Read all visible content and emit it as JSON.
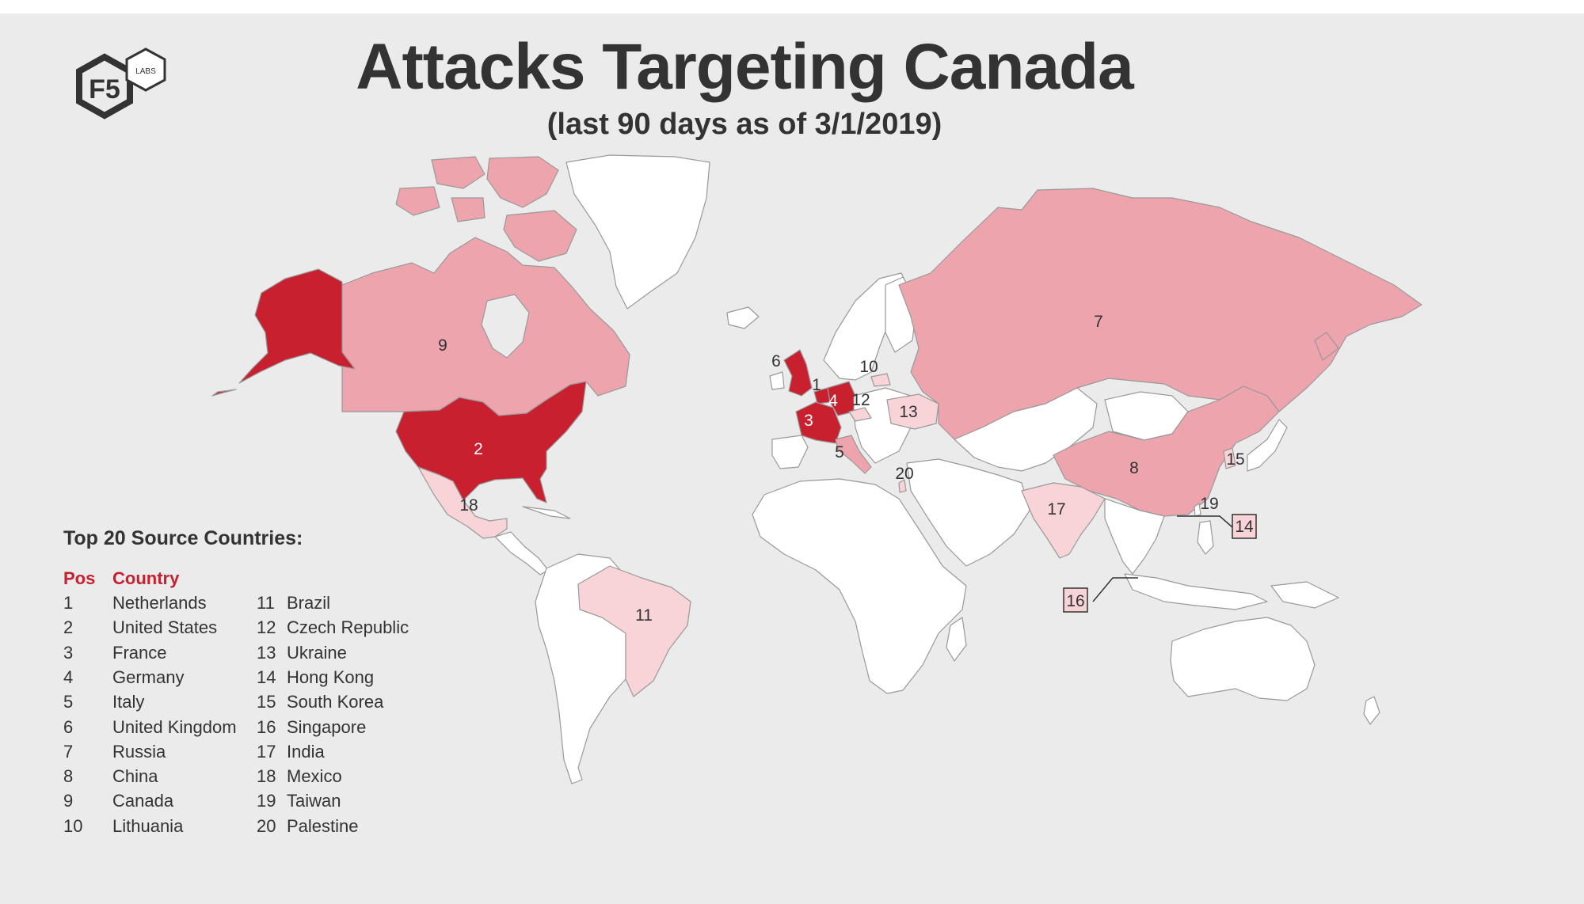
{
  "header": {
    "title": "Attacks Targeting Canada",
    "subtitle": "(last 90 days as of 3/1/2019)"
  },
  "logo": {
    "main": "F5",
    "badge": "LABS"
  },
  "colors": {
    "rank_high": "#c8202f",
    "rank_mid": "#eda4ad",
    "rank_low": "#f8d3d8",
    "land": "#ffffff",
    "background": "#ebebeb",
    "text": "#333333"
  },
  "legend": {
    "title": "Top 20 Source Countries:",
    "col_pos": "Pos",
    "col_country": "Country",
    "rows": [
      {
        "pos": "1",
        "country": "Netherlands"
      },
      {
        "pos": "2",
        "country": "United States"
      },
      {
        "pos": "3",
        "country": "France"
      },
      {
        "pos": "4",
        "country": "Germany"
      },
      {
        "pos": "5",
        "country": "Italy"
      },
      {
        "pos": "6",
        "country": "United Kingdom"
      },
      {
        "pos": "7",
        "country": "Russia"
      },
      {
        "pos": "8",
        "country": "China"
      },
      {
        "pos": "9",
        "country": "Canada"
      },
      {
        "pos": "10",
        "country": "Lithuania"
      },
      {
        "pos": "11",
        "country": "Brazil"
      },
      {
        "pos": "12",
        "country": "Czech Republic"
      },
      {
        "pos": "13",
        "country": "Ukraine"
      },
      {
        "pos": "14",
        "country": "Hong Kong"
      },
      {
        "pos": "15",
        "country": "South Korea"
      },
      {
        "pos": "16",
        "country": "Singapore"
      },
      {
        "pos": "17",
        "country": "India"
      },
      {
        "pos": "18",
        "country": "Mexico"
      },
      {
        "pos": "19",
        "country": "Taiwan"
      },
      {
        "pos": "20",
        "country": "Palestine"
      }
    ]
  },
  "map_labels": {
    "netherlands": "1",
    "usa": "2",
    "france": "3",
    "germany": "4",
    "italy": "5",
    "uk": "6",
    "russia": "7",
    "china": "8",
    "canada": "9",
    "lithuania": "10",
    "brazil": "11",
    "czech": "12",
    "ukraine": "13",
    "hongkong": "14",
    "southkorea": "15",
    "singapore": "16",
    "india": "17",
    "mexico": "18",
    "taiwan": "19",
    "palestine": "20"
  }
}
